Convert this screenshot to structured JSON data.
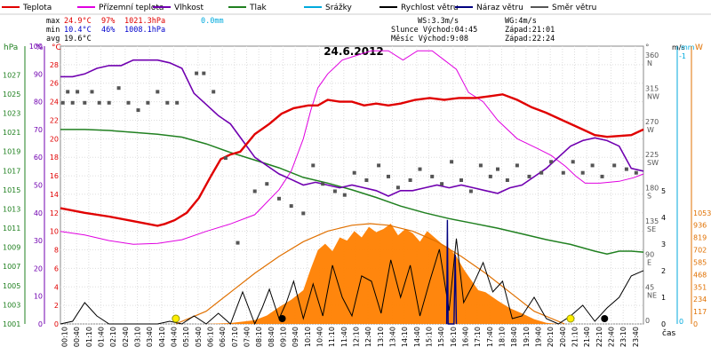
{
  "chart_data": {
    "type": "line",
    "title": "24.6.2012",
    "xlabel": "čas",
    "legend": [
      {
        "label": "Teplota",
        "color": "#e00000"
      },
      {
        "label": "Přízemní teplota",
        "color": "#e000e0"
      },
      {
        "label": "Vlhkost",
        "color": "#7000b0"
      },
      {
        "label": "Tlak",
        "color": "#208020"
      },
      {
        "label": "Srážky",
        "color": "#00aadd"
      },
      {
        "label": "Rychlost větru",
        "color": "#000000"
      },
      {
        "label": "Náraz větru",
        "color": "#000080"
      },
      {
        "label": "Směr větru",
        "color": "#555555"
      }
    ],
    "stats": {
      "max_label": "max",
      "max_temp": "24.9°C",
      "max_hum": "97%",
      "max_press": "1021.3hPa",
      "rain": "0.0mm",
      "min_label": "min",
      "min_temp": "10.4°C",
      "min_hum": "46%",
      "min_press": "1008.1hPa",
      "avg_label": "avg",
      "avg_temp": "19.6°C",
      "ws": "WS:3.3m/s",
      "wg": "WG:4m/s",
      "sun": "Slunce Východ:04:45",
      "sun_set": "Západ:21:01",
      "moon": "Měsíc Východ:9:08",
      "moon_set": "Západ:22:24"
    },
    "axes": {
      "hpa_title": "hPa",
      "pct_title": "%",
      "temp_title": "°C",
      "dir_title": "°",
      "ms_title": "m/s",
      "mm_title": "mm",
      "w_title": "W",
      "hpa_ticks": [
        "1027",
        "1025",
        "1023",
        "1021",
        "1019",
        "1017",
        "1015",
        "1013",
        "1011",
        "1009",
        "1007",
        "1005",
        "1003",
        "1001"
      ],
      "pct_ticks": [
        "100",
        "90",
        "80",
        "70",
        "60",
        "50",
        "40",
        "30",
        "20",
        "10",
        "0"
      ],
      "temp_ticks": [
        "28",
        "26",
        "24",
        "22",
        "20",
        "18",
        "16",
        "14",
        "12",
        "10",
        "8",
        "6",
        "4",
        "2",
        "0"
      ],
      "dir_ticks": [
        "360",
        "315",
        "270",
        "225",
        "180",
        "135",
        "90",
        "45",
        "0"
      ],
      "dir_names": [
        "N",
        "NW",
        "W",
        "SW",
        "S",
        "SE",
        "E",
        "NE",
        ""
      ],
      "ms_ticks": [
        "5",
        "4",
        "3",
        "2",
        "1",
        "0"
      ],
      "mm_ticks": [
        "-1",
        "0"
      ],
      "w_ticks": [
        "1053",
        "936",
        "819",
        "702",
        "585",
        "468",
        "351",
        "234",
        "117",
        "0"
      ],
      "x_ticks": [
        "00:10",
        "00:40",
        "01:10",
        "01:40",
        "02:10",
        "02:40",
        "03:10",
        "03:40",
        "04:10",
        "04:40",
        "05:10",
        "05:40",
        "06:10",
        "06:40",
        "07:10",
        "07:40",
        "08:10",
        "08:40",
        "09:10",
        "09:40",
        "10:10",
        "10:40",
        "11:10",
        "11:40",
        "12:10",
        "12:40",
        "13:10",
        "13:40",
        "14:10",
        "14:40",
        "15:10",
        "15:40",
        "16:10",
        "16:40",
        "17:10",
        "17:40",
        "18:10",
        "18:40",
        "19:10",
        "19:40",
        "20:10",
        "20:40",
        "21:10",
        "21:40",
        "22:10",
        "22:40",
        "23:10",
        "23:40"
      ]
    },
    "temperature_c": [
      [
        0,
        12.5
      ],
      [
        1,
        12.0
      ],
      [
        2,
        11.6
      ],
      [
        3,
        11.1
      ],
      [
        4,
        10.6
      ],
      [
        4.3,
        10.8
      ],
      [
        4.7,
        11.2
      ],
      [
        5.2,
        12.0
      ],
      [
        5.7,
        13.6
      ],
      [
        6.2,
        16.0
      ],
      [
        6.6,
        17.8
      ],
      [
        7.0,
        18.3
      ],
      [
        7.4,
        18.6
      ],
      [
        8.0,
        20.5
      ],
      [
        8.6,
        21.6
      ],
      [
        9.1,
        22.7
      ],
      [
        9.6,
        23.3
      ],
      [
        10.2,
        23.6
      ],
      [
        10.6,
        23.6
      ],
      [
        11.0,
        24.2
      ],
      [
        11.5,
        24.0
      ],
      [
        12.0,
        24.0
      ],
      [
        12.5,
        23.6
      ],
      [
        13.0,
        23.8
      ],
      [
        13.5,
        23.6
      ],
      [
        14.0,
        23.8
      ],
      [
        14.6,
        24.2
      ],
      [
        15.2,
        24.4
      ],
      [
        15.8,
        24.2
      ],
      [
        16.4,
        24.4
      ],
      [
        17.1,
        24.4
      ],
      [
        17.7,
        24.6
      ],
      [
        18.2,
        24.8
      ],
      [
        18.8,
        24.2
      ],
      [
        19.4,
        23.4
      ],
      [
        20.0,
        22.8
      ],
      [
        20.5,
        22.2
      ],
      [
        21.0,
        21.6
      ],
      [
        21.5,
        21.0
      ],
      [
        22.0,
        20.4
      ],
      [
        22.5,
        20.2
      ],
      [
        23.0,
        20.3
      ],
      [
        23.5,
        20.4
      ],
      [
        24.0,
        21.0
      ]
    ],
    "ground_temperature_c": [
      [
        0,
        10.0
      ],
      [
        1,
        9.6
      ],
      [
        2,
        9.0
      ],
      [
        3,
        8.6
      ],
      [
        4,
        8.7
      ],
      [
        5,
        9.1
      ],
      [
        6,
        10.0
      ],
      [
        7,
        10.8
      ],
      [
        8,
        11.8
      ],
      [
        9,
        14.5
      ],
      [
        9.5,
        16.5
      ],
      [
        10.0,
        20.0
      ],
      [
        10.3,
        23.0
      ],
      [
        10.6,
        25.5
      ],
      [
        11.0,
        27.0
      ],
      [
        11.6,
        28.5
      ],
      [
        12.2,
        29.0
      ],
      [
        12.8,
        29.5
      ],
      [
        13.5,
        29.5
      ],
      [
        14.1,
        28.5
      ],
      [
        14.7,
        29.5
      ],
      [
        15.3,
        29.5
      ],
      [
        15.8,
        28.5
      ],
      [
        16.3,
        27.5
      ],
      [
        16.8,
        25.0
      ],
      [
        17.4,
        24.0
      ],
      [
        18.0,
        22.0
      ],
      [
        18.8,
        20.0
      ],
      [
        19.6,
        19.0
      ],
      [
        20.2,
        18.2
      ],
      [
        20.8,
        17.0
      ],
      [
        21.2,
        16.0
      ],
      [
        21.6,
        15.2
      ],
      [
        22.2,
        15.2
      ],
      [
        23.0,
        15.4
      ],
      [
        23.6,
        15.8
      ],
      [
        24.0,
        16.2
      ]
    ],
    "humidity_pct": [
      [
        0,
        89
      ],
      [
        0.5,
        89
      ],
      [
        1,
        90
      ],
      [
        1.5,
        92
      ],
      [
        2,
        93
      ],
      [
        2.5,
        93
      ],
      [
        3,
        95
      ],
      [
        3.5,
        95
      ],
      [
        4,
        95
      ],
      [
        4.5,
        94
      ],
      [
        5,
        92
      ],
      [
        5.5,
        83
      ],
      [
        6,
        79
      ],
      [
        6.5,
        75
      ],
      [
        7,
        72
      ],
      [
        7.5,
        66
      ],
      [
        8,
        60
      ],
      [
        8.5,
        57
      ],
      [
        9,
        54
      ],
      [
        9.5,
        52
      ],
      [
        10,
        50
      ],
      [
        10.5,
        51
      ],
      [
        11,
        50
      ],
      [
        11.5,
        49
      ],
      [
        12,
        50
      ],
      [
        12.5,
        49
      ],
      [
        13,
        48
      ],
      [
        13.5,
        46
      ],
      [
        14,
        48
      ],
      [
        14.5,
        48
      ],
      [
        15,
        49
      ],
      [
        15.5,
        50
      ],
      [
        16,
        49
      ],
      [
        16.5,
        50
      ],
      [
        17,
        49
      ],
      [
        17.5,
        48
      ],
      [
        18,
        47
      ],
      [
        18.5,
        49
      ],
      [
        19,
        50
      ],
      [
        19.5,
        53
      ],
      [
        20,
        56
      ],
      [
        20.5,
        60
      ],
      [
        21,
        64
      ],
      [
        21.5,
        66
      ],
      [
        22,
        67
      ],
      [
        22.5,
        66
      ],
      [
        23,
        64
      ],
      [
        23.5,
        56
      ],
      [
        24,
        55
      ]
    ],
    "pressure_hpa": [
      [
        0,
        1021.3
      ],
      [
        1,
        1021.3
      ],
      [
        2,
        1021.2
      ],
      [
        3,
        1021.0
      ],
      [
        4,
        1020.8
      ],
      [
        5,
        1020.5
      ],
      [
        6,
        1019.8
      ],
      [
        7,
        1018.9
      ],
      [
        8,
        1018.1
      ],
      [
        9,
        1017.3
      ],
      [
        10,
        1016.3
      ],
      [
        11,
        1015.7
      ],
      [
        12,
        1015.0
      ],
      [
        13,
        1014.2
      ],
      [
        14,
        1013.3
      ],
      [
        15,
        1012.6
      ],
      [
        16,
        1012.0
      ],
      [
        17,
        1011.5
      ],
      [
        18,
        1011.0
      ],
      [
        19,
        1010.4
      ],
      [
        20,
        1009.8
      ],
      [
        21,
        1009.3
      ],
      [
        22,
        1008.6
      ],
      [
        22.5,
        1008.3
      ],
      [
        23,
        1008.6
      ],
      [
        23.5,
        1008.6
      ],
      [
        24,
        1008.5
      ]
    ],
    "wind_speed_ms": [
      [
        0,
        0.0
      ],
      [
        0.5,
        0.1
      ],
      [
        1,
        0.8
      ],
      [
        1.5,
        0.3
      ],
      [
        2,
        0.0
      ],
      [
        3,
        0.0
      ],
      [
        4,
        0.0
      ],
      [
        4.5,
        0.1
      ],
      [
        5,
        0.0
      ],
      [
        5.5,
        0.3
      ],
      [
        6,
        0.0
      ],
      [
        6.5,
        0.4
      ],
      [
        7,
        0.0
      ],
      [
        7.5,
        1.2
      ],
      [
        8,
        0.0
      ],
      [
        8.3,
        0.6
      ],
      [
        8.6,
        1.3
      ],
      [
        9,
        0.2
      ],
      [
        9.3,
        0.8
      ],
      [
        9.6,
        1.6
      ],
      [
        10,
        0.2
      ],
      [
        10.4,
        1.5
      ],
      [
        10.8,
        0.3
      ],
      [
        11.2,
        2.2
      ],
      [
        11.6,
        1.0
      ],
      [
        12,
        0.3
      ],
      [
        12.4,
        1.8
      ],
      [
        12.8,
        1.6
      ],
      [
        13.2,
        0.4
      ],
      [
        13.6,
        2.4
      ],
      [
        14,
        1.0
      ],
      [
        14.4,
        2.2
      ],
      [
        14.8,
        0.3
      ],
      [
        15.2,
        1.6
      ],
      [
        15.6,
        2.8
      ],
      [
        16,
        0.5
      ],
      [
        16.3,
        3.2
      ],
      [
        16.6,
        0.8
      ],
      [
        17,
        1.5
      ],
      [
        17.4,
        2.3
      ],
      [
        17.8,
        1.2
      ],
      [
        18.2,
        1.6
      ],
      [
        18.6,
        0.2
      ],
      [
        19,
        0.3
      ],
      [
        19.5,
        1.0
      ],
      [
        20,
        0.2
      ],
      [
        20.5,
        0.0
      ],
      [
        21,
        0.3
      ],
      [
        21.5,
        0.7
      ],
      [
        22,
        0.1
      ],
      [
        22.5,
        0.6
      ],
      [
        23,
        1.0
      ],
      [
        23.5,
        1.8
      ],
      [
        24,
        2.0
      ]
    ],
    "wind_gust_ms": [
      [
        15.9,
        0.0
      ],
      [
        15.93,
        3.9
      ],
      [
        15.96,
        0.0
      ],
      [
        16.2,
        0.0
      ],
      [
        16.25,
        2.6
      ],
      [
        16.3,
        0.0
      ]
    ],
    "wind_direction_deg": [
      [
        0.1,
        300
      ],
      [
        0.3,
        315
      ],
      [
        0.5,
        300
      ],
      [
        0.7,
        315
      ],
      [
        1.0,
        300
      ],
      [
        1.3,
        315
      ],
      [
        1.6,
        300
      ],
      [
        2.0,
        300
      ],
      [
        2.4,
        320
      ],
      [
        2.8,
        300
      ],
      [
        3.2,
        290
      ],
      [
        3.6,
        300
      ],
      [
        4.0,
        315
      ],
      [
        4.4,
        300
      ],
      [
        4.8,
        300
      ],
      [
        5.6,
        340
      ],
      [
        5.9,
        340
      ],
      [
        6.3,
        315
      ],
      [
        6.8,
        225
      ],
      [
        7.3,
        110
      ],
      [
        8.0,
        180
      ],
      [
        8.5,
        190
      ],
      [
        9.0,
        170
      ],
      [
        9.5,
        160
      ],
      [
        10.0,
        150
      ],
      [
        10.4,
        215
      ],
      [
        10.8,
        190
      ],
      [
        11.3,
        180
      ],
      [
        11.7,
        175
      ],
      [
        12.1,
        205
      ],
      [
        12.6,
        195
      ],
      [
        13.1,
        215
      ],
      [
        13.5,
        200
      ],
      [
        13.9,
        185
      ],
      [
        14.4,
        195
      ],
      [
        14.8,
        210
      ],
      [
        15.3,
        200
      ],
      [
        15.7,
        190
      ],
      [
        16.1,
        220
      ],
      [
        16.5,
        195
      ],
      [
        16.9,
        180
      ],
      [
        17.3,
        215
      ],
      [
        17.7,
        200
      ],
      [
        18.0,
        210
      ],
      [
        18.4,
        195
      ],
      [
        18.8,
        215
      ],
      [
        19.3,
        200
      ],
      [
        19.8,
        205
      ],
      [
        20.2,
        220
      ],
      [
        20.7,
        205
      ],
      [
        21.1,
        220
      ],
      [
        21.5,
        205
      ],
      [
        21.9,
        215
      ],
      [
        22.3,
        200
      ],
      [
        22.8,
        215
      ],
      [
        23.3,
        210
      ],
      [
        23.7,
        205
      ]
    ],
    "solar_w": [
      [
        0,
        0
      ],
      [
        4.5,
        0
      ],
      [
        5,
        0
      ],
      [
        6,
        0
      ],
      [
        7,
        8
      ],
      [
        8,
        35
      ],
      [
        8.5,
        80
      ],
      [
        9,
        160
      ],
      [
        9.5,
        230
      ],
      [
        10,
        320
      ],
      [
        10.3,
        520
      ],
      [
        10.6,
        700
      ],
      [
        10.9,
        760
      ],
      [
        11.2,
        690
      ],
      [
        11.5,
        820
      ],
      [
        11.8,
        790
      ],
      [
        12.1,
        880
      ],
      [
        12.4,
        820
      ],
      [
        12.7,
        920
      ],
      [
        13.0,
        870
      ],
      [
        13.3,
        900
      ],
      [
        13.6,
        950
      ],
      [
        13.9,
        840
      ],
      [
        14.2,
        900
      ],
      [
        14.5,
        860
      ],
      [
        14.8,
        780
      ],
      [
        15.1,
        880
      ],
      [
        15.4,
        820
      ],
      [
        15.7,
        760
      ],
      [
        16.0,
        720
      ],
      [
        16.3,
        640
      ],
      [
        16.6,
        520
      ],
      [
        16.9,
        420
      ],
      [
        17.2,
        320
      ],
      [
        17.5,
        300
      ],
      [
        18.0,
        220
      ],
      [
        18.5,
        150
      ],
      [
        19.0,
        100
      ],
      [
        19.5,
        45
      ],
      [
        20.0,
        10
      ],
      [
        20.5,
        0
      ],
      [
        24,
        0
      ]
    ],
    "solar_theoretical_w": [
      [
        4.75,
        0
      ],
      [
        6,
        120
      ],
      [
        7,
        300
      ],
      [
        8,
        480
      ],
      [
        9,
        640
      ],
      [
        10,
        780
      ],
      [
        11,
        880
      ],
      [
        12,
        935
      ],
      [
        12.75,
        950
      ],
      [
        13.5,
        935
      ],
      [
        14.5,
        880
      ],
      [
        15.5,
        780
      ],
      [
        16.5,
        640
      ],
      [
        17.5,
        480
      ],
      [
        18.5,
        300
      ],
      [
        19.5,
        120
      ],
      [
        20.75,
        0
      ]
    ],
    "ylim_temp": [
      0,
      30
    ],
    "ylim_hpa": [
      1001,
      1030
    ],
    "ylim_dir": [
      0,
      360
    ],
    "ylim_ms": [
      0,
      5
    ],
    "ylim_w": [
      0,
      1053
    ],
    "xlim_hours": [
      0,
      24
    ],
    "grid": true
  }
}
